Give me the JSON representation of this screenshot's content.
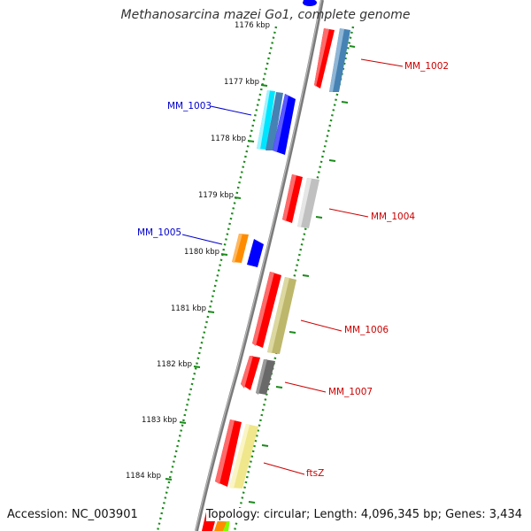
{
  "title": "Methanosarcina mazei Go1, complete genome",
  "footer": {
    "accession": "Accession: NC_003901",
    "stats": "Topology: circular; Length: 4,096,345 bp; Genes: 3,434"
  },
  "kbp_labels": [
    "1176 kbp",
    "1177 kbp",
    "1178 kbp",
    "1179 kbp",
    "1180 kbp",
    "1181 kbp",
    "1182 kbp",
    "1183 kbp",
    "1184 kbp"
  ],
  "gene_labels": {
    "mm_1002": "MM_1002",
    "mm_1003": "MM_1003",
    "mm_1004": "MM_1004",
    "mm_1005": "MM_1005",
    "mm_1006": "MM_1006",
    "mm_1007": "MM_1007",
    "ftsz": "ftsZ"
  },
  "colors": {
    "forward_label": "#0000cc",
    "reverse_label": "#cc0000",
    "backbone": "#808080",
    "tick": "#1a8a1a",
    "red": "#ff0000",
    "blue": "#0000ff",
    "cyan": "#00e5ff",
    "steel": "#4682b4",
    "orange": "#ff8c00",
    "silver": "#c0c0c0",
    "khaki": "#bdb76b",
    "gray": "#696969",
    "wheat": "#f0e68c",
    "green": "#7fff00"
  }
}
